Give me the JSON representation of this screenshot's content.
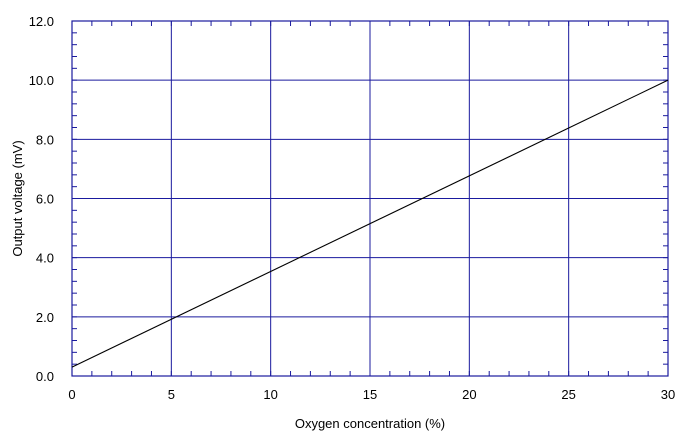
{
  "chart_data": {
    "type": "line",
    "title": "",
    "xlabel": "Oxygen concentration (%)",
    "ylabel": "Output voltage (mV)",
    "xlim": [
      0,
      30
    ],
    "ylim": [
      0,
      12
    ],
    "x_ticks": [
      0,
      5,
      10,
      15,
      20,
      25,
      30
    ],
    "x_tick_labels": [
      "0",
      "5",
      "10",
      "15",
      "20",
      "25",
      "30"
    ],
    "y_ticks": [
      0,
      2,
      4,
      6,
      8,
      10,
      12
    ],
    "y_tick_labels": [
      "0.0",
      "2.0",
      "4.0",
      "6.0",
      "8.0",
      "10.0",
      "12.0"
    ],
    "grid": true,
    "grid_color": "#1a1a9e",
    "line_color": "#000000",
    "series": [
      {
        "x": [
          0,
          30
        ],
        "y": [
          0.3,
          10.0
        ]
      }
    ]
  }
}
